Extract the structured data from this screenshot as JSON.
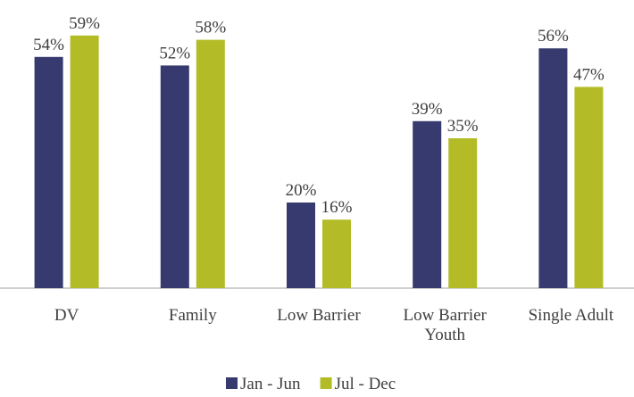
{
  "chart_data": {
    "type": "bar",
    "categories": [
      "DV",
      "Family",
      "Low Barrier",
      "Low Barrier Youth",
      "Single Adult"
    ],
    "series": [
      {
        "name": "Jan - Jun",
        "color": "#363a6e",
        "values": [
          54,
          52,
          20,
          39,
          56
        ],
        "value_labels": [
          "54%",
          "52%",
          "20%",
          "39%",
          "56%"
        ]
      },
      {
        "name": "Jul - Dec",
        "color": "#b3bc26",
        "values": [
          59,
          58,
          16,
          35,
          47
        ],
        "value_labels": [
          "59%",
          "58%",
          "16%",
          "35%",
          "47%"
        ]
      }
    ],
    "ylim": [
      0,
      60
    ],
    "legend": "bottom"
  }
}
